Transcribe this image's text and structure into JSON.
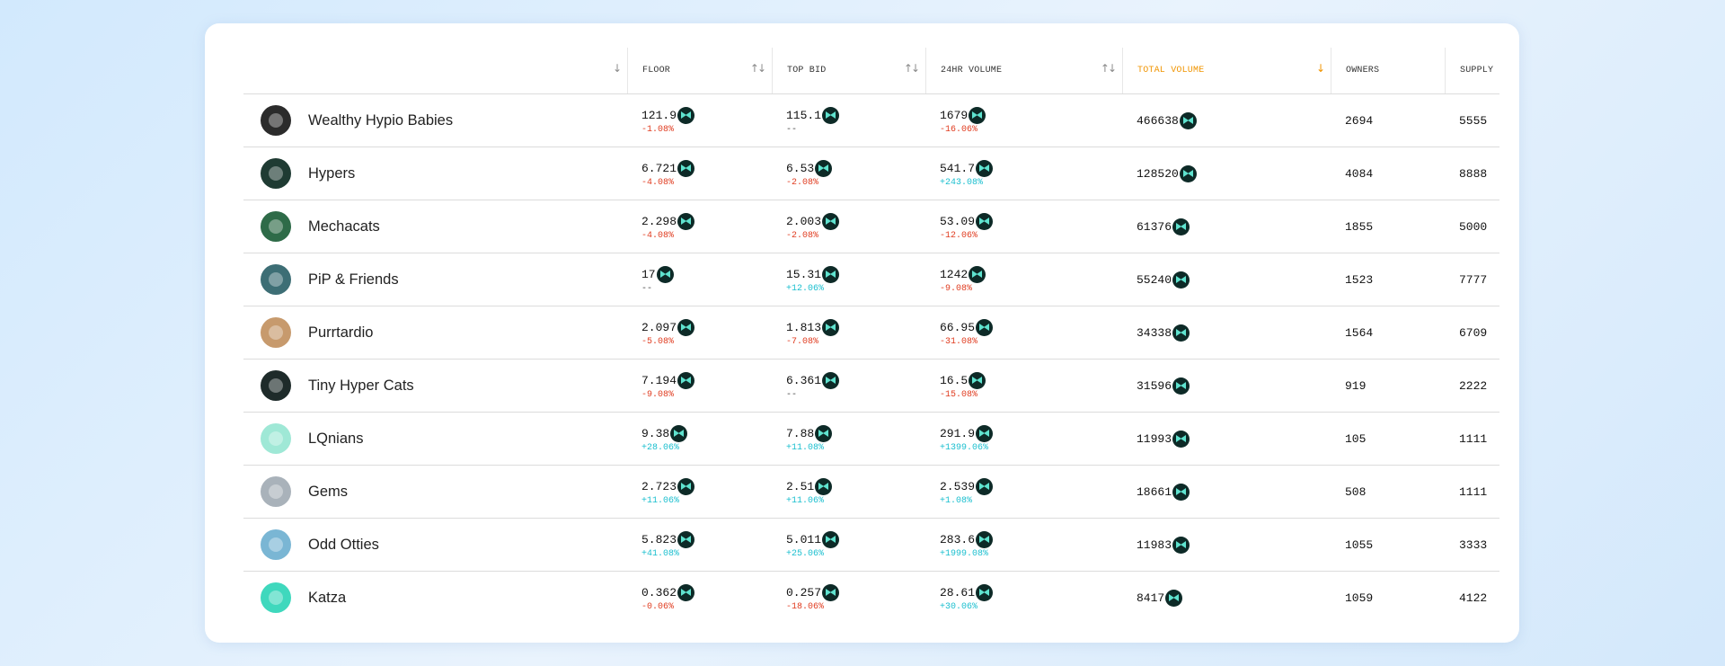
{
  "header": {
    "name_sort": "↓",
    "columns": [
      {
        "label": "FLOOR",
        "sort": "↑↓"
      },
      {
        "label": "TOP BID",
        "sort": "↑↓"
      },
      {
        "label": "24HR VOLUME",
        "sort": "↑↓"
      },
      {
        "label": "TOTAL VOLUME",
        "sort": "↓"
      },
      {
        "label": "OWNERS",
        "sort": ""
      },
      {
        "label": "SUPPLY",
        "sort": ""
      }
    ]
  },
  "accent_color": "#f09400",
  "token_icon": "token-icon",
  "collections": [
    {
      "name": "Wealthy Hypio Babies",
      "avatar_color": "#2b2b2b",
      "floor": "121.9",
      "floor_change": "-1.08%",
      "top_bid": "115.1",
      "top_bid_change": "--",
      "vol24": "1679",
      "vol24_change": "-16.06%",
      "total_volume": "466638",
      "owners": "2694",
      "supply": "5555"
    },
    {
      "name": "Hypers",
      "avatar_color": "#1f3b33",
      "floor": "6.721",
      "floor_change": "-4.08%",
      "top_bid": "6.53",
      "top_bid_change": "-2.08%",
      "vol24": "541.7",
      "vol24_change": "+243.08%",
      "total_volume": "128520",
      "owners": "4084",
      "supply": "8888"
    },
    {
      "name": "Mechacats",
      "avatar_color": "#2e6b48",
      "floor": "2.298",
      "floor_change": "-4.08%",
      "top_bid": "2.003",
      "top_bid_change": "-2.08%",
      "vol24": "53.09",
      "vol24_change": "-12.06%",
      "total_volume": "61376",
      "owners": "1855",
      "supply": "5000"
    },
    {
      "name": "PiP & Friends",
      "avatar_color": "#3d6e75",
      "floor": "17",
      "floor_change": "--",
      "top_bid": "15.31",
      "top_bid_change": "+12.06%",
      "vol24": "1242",
      "vol24_change": "-9.08%",
      "total_volume": "55240",
      "owners": "1523",
      "supply": "7777"
    },
    {
      "name": "Purrtardio",
      "avatar_color": "#c79a6d",
      "floor": "2.097",
      "floor_change": "-5.08%",
      "top_bid": "1.813",
      "top_bid_change": "-7.08%",
      "vol24": "66.95",
      "vol24_change": "-31.08%",
      "total_volume": "34338",
      "owners": "1564",
      "supply": "6709"
    },
    {
      "name": "Tiny Hyper Cats",
      "avatar_color": "#1e2b2a",
      "floor": "7.194",
      "floor_change": "-9.08%",
      "top_bid": "6.361",
      "top_bid_change": "--",
      "vol24": "16.5",
      "vol24_change": "-15.08%",
      "total_volume": "31596",
      "owners": "919",
      "supply": "2222"
    },
    {
      "name": "LQnians",
      "avatar_color": "#9fe8d6",
      "floor": "9.38",
      "floor_change": "+28.06%",
      "top_bid": "7.88",
      "top_bid_change": "+11.08%",
      "vol24": "291.9",
      "vol24_change": "+1399.06%",
      "total_volume": "11993",
      "owners": "105",
      "supply": "1111"
    },
    {
      "name": "Gems",
      "avatar_color": "#a9b2ba",
      "floor": "2.723",
      "floor_change": "+11.06%",
      "top_bid": "2.51",
      "top_bid_change": "+11.06%",
      "vol24": "2.539",
      "vol24_change": "+1.08%",
      "total_volume": "18661",
      "owners": "508",
      "supply": "1111"
    },
    {
      "name": "Odd Otties",
      "avatar_color": "#7ab6d4",
      "floor": "5.823",
      "floor_change": "+41.08%",
      "top_bid": "5.011",
      "top_bid_change": "+25.06%",
      "vol24": "283.6",
      "vol24_change": "+1999.08%",
      "total_volume": "11983",
      "owners": "1055",
      "supply": "3333"
    },
    {
      "name": "Katza",
      "avatar_color": "#3fd8bd",
      "floor": "0.362",
      "floor_change": "-0.06%",
      "top_bid": "0.257",
      "top_bid_change": "-18.06%",
      "vol24": "28.61",
      "vol24_change": "+30.06%",
      "total_volume": "8417",
      "owners": "1059",
      "supply": "4122"
    }
  ]
}
